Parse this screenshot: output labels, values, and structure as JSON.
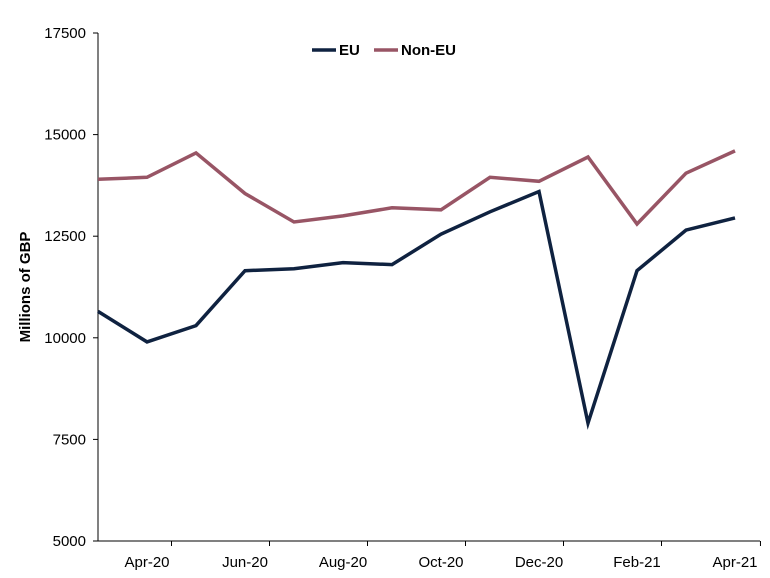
{
  "chart_data": {
    "type": "line",
    "title": "",
    "xlabel": "",
    "ylabel": "Millions of GBP",
    "ylim": [
      5000,
      17500
    ],
    "yticks": [
      5000,
      7500,
      10000,
      12500,
      15000,
      17500
    ],
    "grid": false,
    "legend_position": "top-center",
    "x": [
      "Mar-20",
      "Apr-20",
      "May-20",
      "Jun-20",
      "Jul-20",
      "Aug-20",
      "Sep-20",
      "Oct-20",
      "Nov-20",
      "Dec-20",
      "Jan-21",
      "Feb-21",
      "Mar-21",
      "Apr-21"
    ],
    "xtick_labels": [
      "Apr-20",
      "Jun-20",
      "Aug-20",
      "Oct-20",
      "Dec-20",
      "Feb-21",
      "Apr-21"
    ],
    "series": [
      {
        "name": "EU",
        "color": "#0f2240",
        "values": [
          10650,
          9900,
          10300,
          11650,
          11700,
          11850,
          11800,
          12550,
          13100,
          13600,
          7900,
          11650,
          12650,
          12950
        ]
      },
      {
        "name": "Non-EU",
        "color": "#985565",
        "values": [
          13900,
          13950,
          14550,
          13550,
          12850,
          13000,
          13200,
          13150,
          13950,
          13850,
          14450,
          12800,
          14050,
          14600
        ]
      }
    ]
  }
}
